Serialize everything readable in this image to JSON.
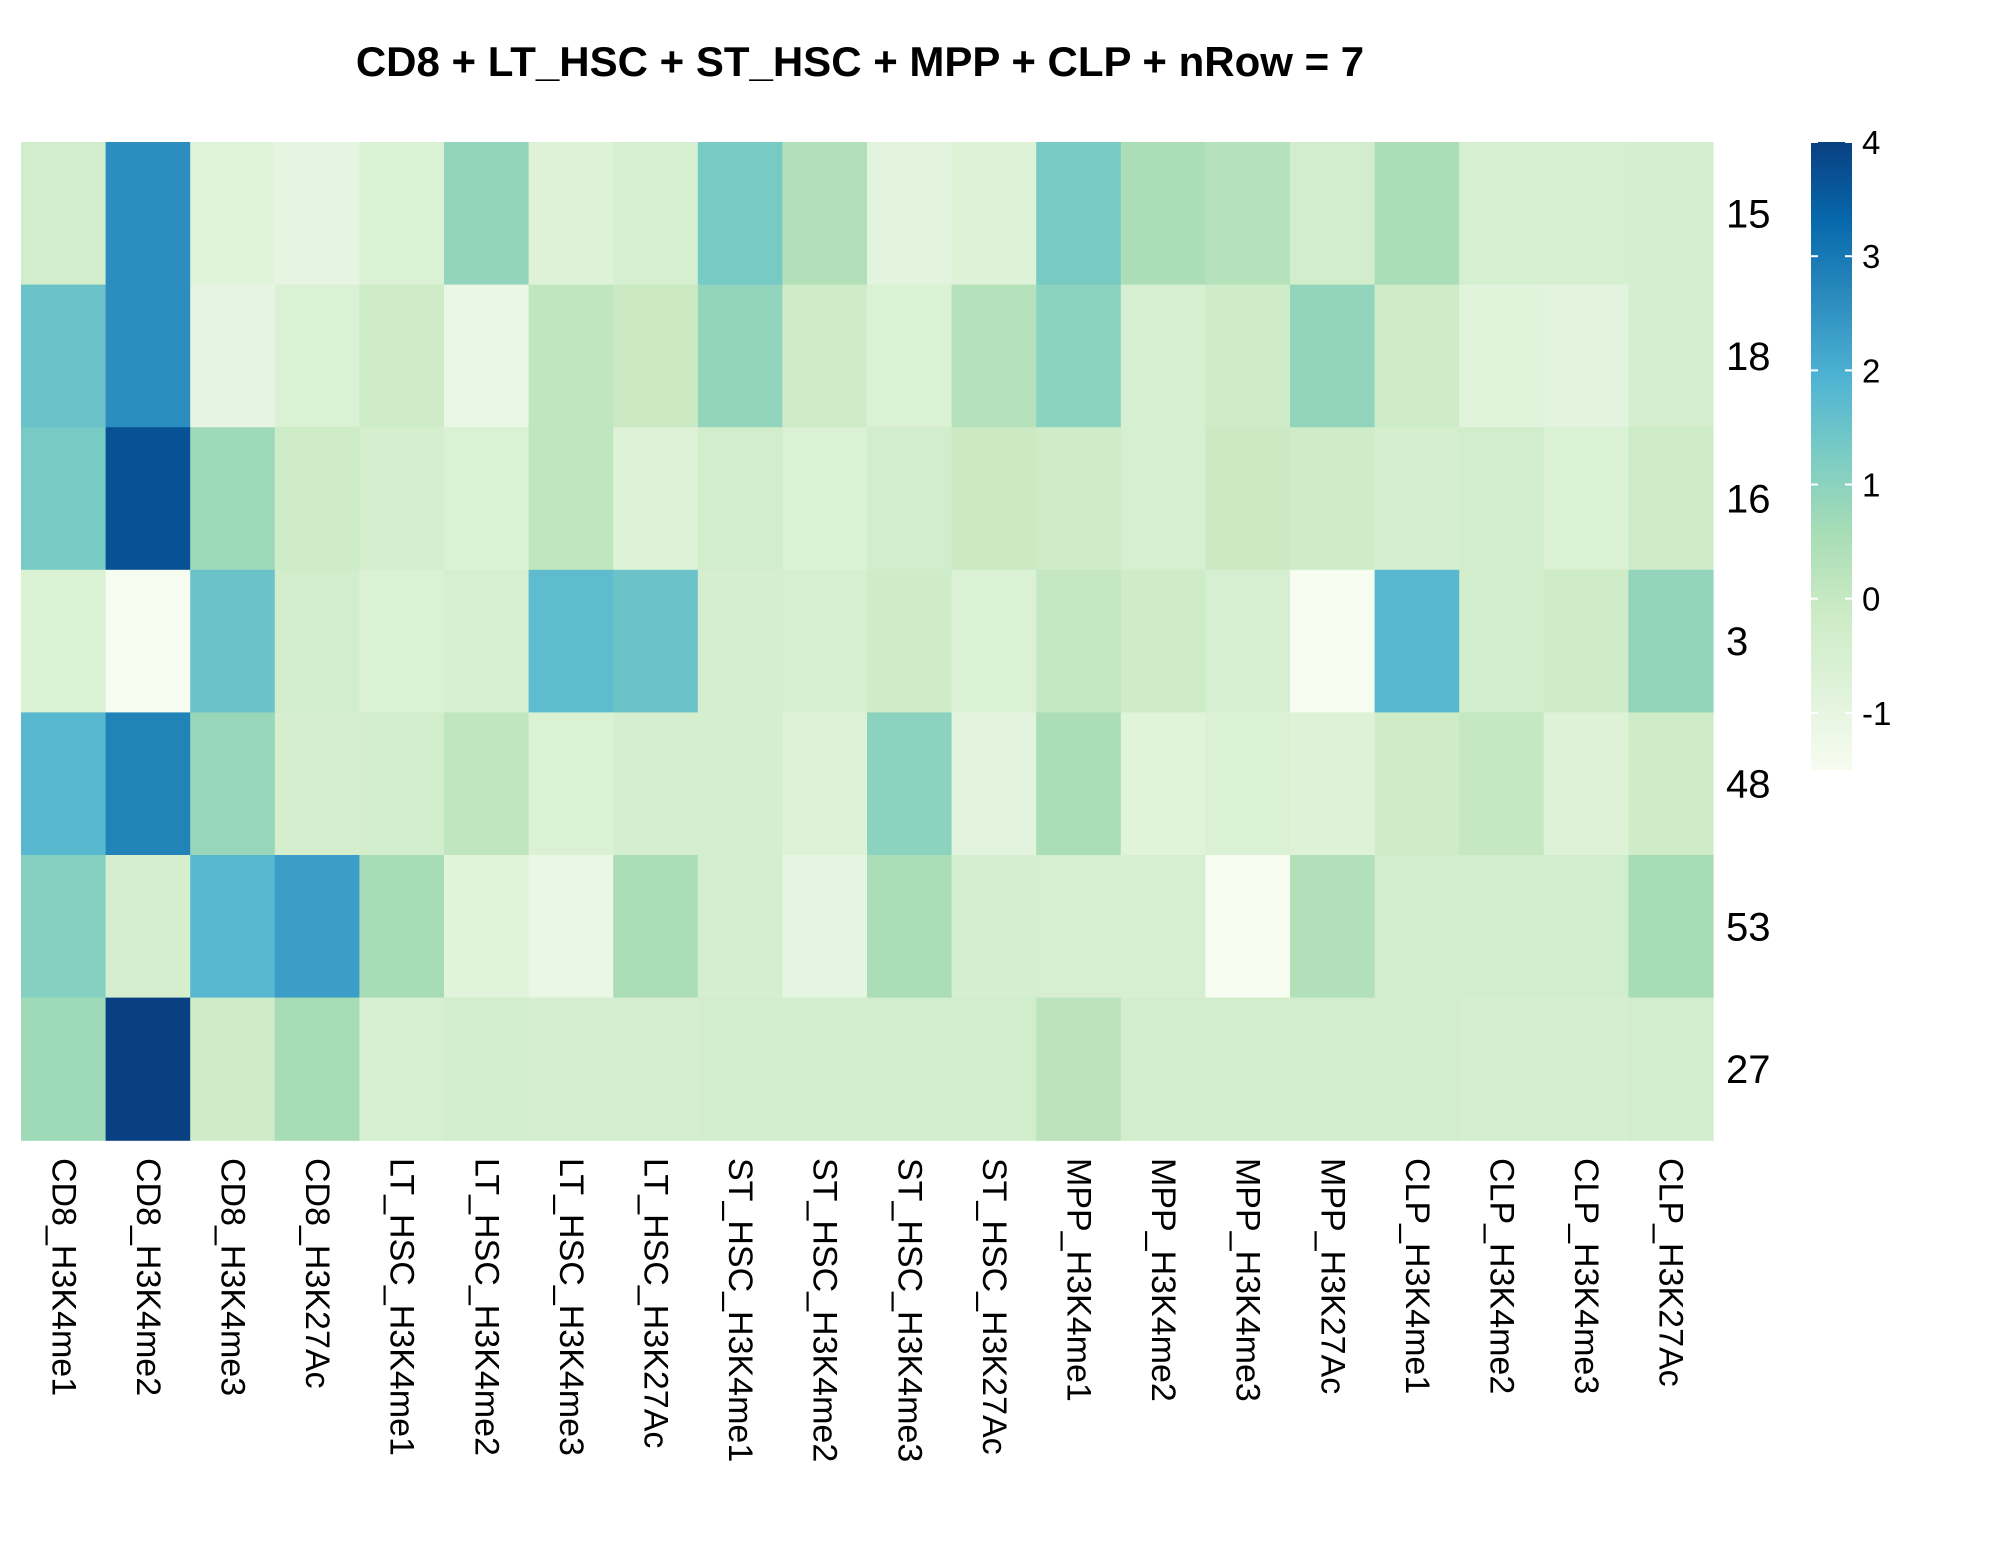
{
  "chart_data": {
    "type": "heatmap",
    "title": "CD8 + LT_HSC + ST_HSC + MPP + CLP + nRow = 7",
    "columns": [
      "CD8_H3K4me1",
      "CD8_H3K4me2",
      "CD8_H3K4me3",
      "CD8_H3K27Ac",
      "LT_HSC_H3K4me1",
      "LT_HSC_H3K4me2",
      "LT_HSC_H3K4me3",
      "LT_HSC_H3K27Ac",
      "ST_HSC_H3K4me1",
      "ST_HSC_H3K4me2",
      "ST_HSC_H3K4me3",
      "ST_HSC_H3K27Ac",
      "MPP_H3K4me1",
      "MPP_H3K4me2",
      "MPP_H3K4me3",
      "MPP_H3K27Ac",
      "CLP_H3K4me1",
      "CLP_H3K4me2",
      "CLP_H3K4me3",
      "CLP_H3K27Ac"
    ],
    "rows": [
      "15",
      "18",
      "16",
      "3",
      "48",
      "53",
      "27"
    ],
    "values": [
      [
        -0.3,
        2.6,
        -0.8,
        -1.0,
        -0.6,
        0.9,
        -0.7,
        -0.5,
        1.3,
        0.4,
        -0.9,
        -0.7,
        1.3,
        0.5,
        0.3,
        -0.3,
        0.5,
        -0.5,
        -0.5,
        -0.4
      ],
      [
        1.5,
        2.6,
        -1.0,
        -0.6,
        -0.2,
        -1.1,
        0.1,
        -0.1,
        0.9,
        -0.2,
        -0.6,
        0.3,
        1.0,
        -0.5,
        -0.2,
        0.9,
        -0.2,
        -0.8,
        -0.9,
        -0.4
      ],
      [
        1.3,
        3.7,
        0.7,
        -0.2,
        -0.4,
        -0.6,
        0.1,
        -0.7,
        -0.3,
        -0.6,
        -0.3,
        -0.1,
        -0.2,
        -0.5,
        -0.1,
        -0.2,
        -0.4,
        -0.3,
        -0.6,
        -0.2
      ],
      [
        -0.6,
        -1.5,
        1.5,
        -0.3,
        -0.6,
        -0.5,
        1.7,
        1.5,
        -0.4,
        -0.5,
        -0.2,
        -0.6,
        0.0,
        -0.2,
        -0.5,
        -1.5,
        1.8,
        -0.3,
        -0.2,
        0.9
      ],
      [
        1.8,
        2.8,
        0.8,
        -0.4,
        -0.3,
        0.1,
        -0.6,
        -0.4,
        -0.4,
        -0.7,
        1.0,
        -0.9,
        0.5,
        -0.8,
        -0.6,
        -0.7,
        -0.2,
        0.0,
        -0.7,
        -0.2
      ],
      [
        1.1,
        -0.4,
        1.8,
        2.3,
        0.6,
        -0.8,
        -1.1,
        0.5,
        -0.4,
        -1.0,
        0.5,
        -0.4,
        -0.5,
        -0.5,
        -1.5,
        0.4,
        -0.3,
        -0.3,
        -0.3,
        0.6
      ],
      [
        0.7,
        4.0,
        -0.2,
        0.6,
        -0.5,
        -0.3,
        -0.4,
        -0.4,
        -0.3,
        -0.3,
        -0.3,
        -0.3,
        0.2,
        -0.3,
        -0.3,
        -0.3,
        -0.3,
        -0.4,
        -0.4,
        -0.3
      ]
    ],
    "legend": {
      "ticks": [
        "4",
        "3",
        "2",
        "1",
        "0",
        "-1"
      ],
      "tick_values": [
        4,
        3,
        2,
        1,
        0,
        -1
      ],
      "range": [
        -1.5,
        4
      ],
      "placement": "right"
    },
    "colorscale": [
      "#f7fcf0",
      "#e0f3db",
      "#ccebc5",
      "#a8ddb5",
      "#7bccc4",
      "#4eb3d3",
      "#2b8cbe",
      "#0868ac",
      "#084081"
    ]
  }
}
